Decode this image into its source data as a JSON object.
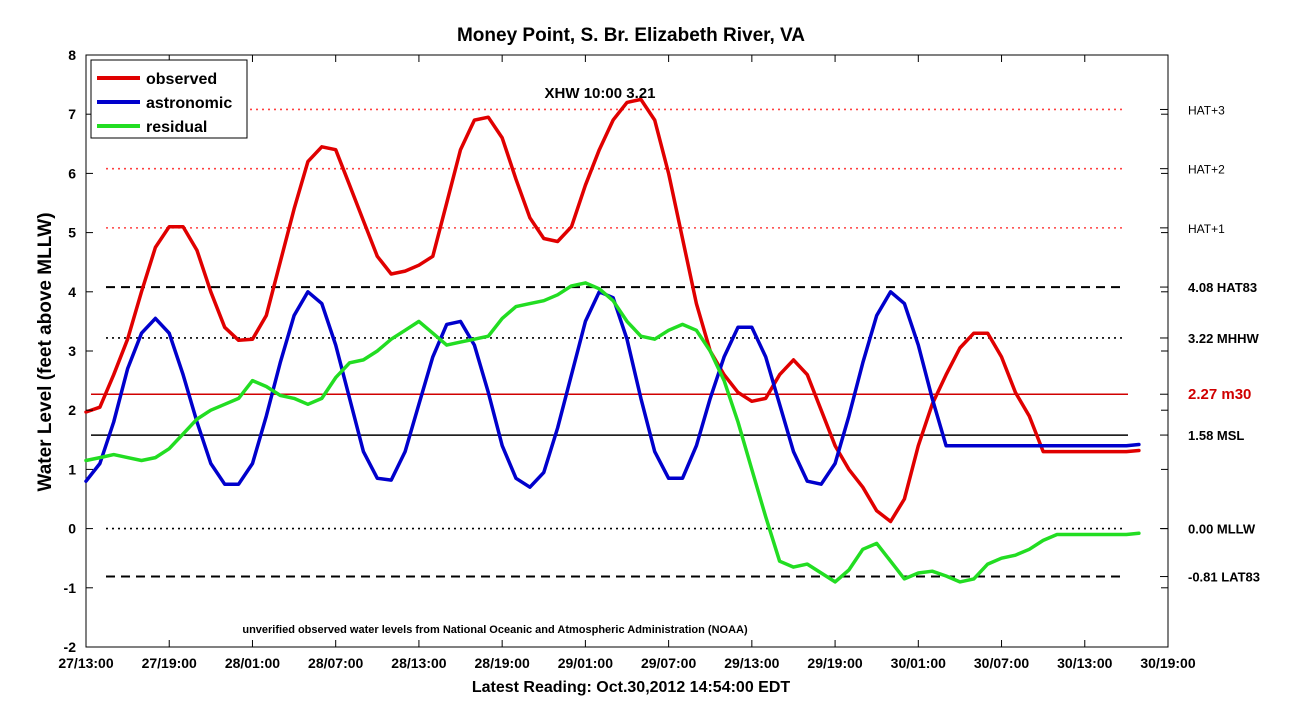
{
  "chart_data": {
    "type": "line",
    "title": "Money Point, S. Br. Elizabeth River, VA",
    "xlabel": "Latest Reading: Oct.30,2012 14:54:00 EDT",
    "ylabel": "Water Level (feet above MLLW)",
    "ylim": [
      -2,
      8
    ],
    "yticks": [
      "-2",
      "-1",
      "0",
      "1",
      "2",
      "3",
      "4",
      "5",
      "6",
      "7",
      "8"
    ],
    "xlim": [
      0,
      78
    ],
    "xticks": [
      {
        "x": 0,
        "label": "27/13:00"
      },
      {
        "x": 6,
        "label": "27/19:00"
      },
      {
        "x": 12,
        "label": "28/01:00"
      },
      {
        "x": 18,
        "label": "28/07:00"
      },
      {
        "x": 24,
        "label": "28/13:00"
      },
      {
        "x": 30,
        "label": "28/19:00"
      },
      {
        "x": 36,
        "label": "29/01:00"
      },
      {
        "x": 42,
        "label": "29/07:00"
      },
      {
        "x": 48,
        "label": "29/13:00"
      },
      {
        "x": 54,
        "label": "29/19:00"
      },
      {
        "x": 60,
        "label": "30/01:00"
      },
      {
        "x": 66,
        "label": "30/07:00"
      },
      {
        "x": 72,
        "label": "30/13:00"
      },
      {
        "x": 78,
        "label": "30/19:00"
      }
    ],
    "legend_position": "top-left",
    "annotation": "XHW 10:00 3.21",
    "footnote": "unverified observed water levels from National Oceanic and Atmospheric Administration (NOAA)",
    "reference_lines": [
      {
        "value": 7.08,
        "label": "HAT+3",
        "style": "dotted",
        "color": "#ff4040"
      },
      {
        "value": 6.08,
        "label": "HAT+2",
        "style": "dotted",
        "color": "#ff4040"
      },
      {
        "value": 5.08,
        "label": "HAT+1",
        "style": "dotted",
        "color": "#ff4040"
      },
      {
        "value": 4.08,
        "label": "4.08 HAT83",
        "style": "dashed",
        "color": "#000000"
      },
      {
        "value": 3.22,
        "label": "3.22 MHHW",
        "style": "dotted",
        "color": "#000000"
      },
      {
        "value": 2.27,
        "label": "2.27 m30",
        "style": "solid",
        "color": "#d00000"
      },
      {
        "value": 1.58,
        "label": "1.58 MSL",
        "style": "solid",
        "color": "#000000"
      },
      {
        "value": 0.0,
        "label": "0.00 MLLW",
        "style": "dotted",
        "color": "#000000"
      },
      {
        "value": -0.81,
        "label": "-0.81 LAT83",
        "style": "dashed",
        "color": "#000000"
      }
    ],
    "series": [
      {
        "name": "observed",
        "color": "#e00000",
        "x": [
          0,
          1,
          2,
          3,
          4,
          5,
          6,
          7,
          8,
          9,
          10,
          11,
          12,
          13,
          14,
          15,
          16,
          17,
          18,
          19,
          20,
          21,
          22,
          23,
          24,
          25,
          26,
          27,
          28,
          29,
          30,
          31,
          32,
          33,
          34,
          35,
          36,
          37,
          38,
          39,
          40,
          41,
          42,
          43,
          44,
          45,
          46,
          47,
          48,
          49,
          50,
          51,
          52,
          53,
          54,
          55,
          56,
          57,
          58,
          59,
          60,
          61,
          62,
          63,
          64,
          65,
          66,
          67,
          68,
          69,
          70,
          71,
          72,
          73,
          74,
          75,
          75.9
        ],
        "values": [
          1.97,
          2.05,
          2.6,
          3.2,
          4.0,
          4.75,
          5.1,
          5.1,
          4.7,
          4.0,
          3.4,
          3.18,
          3.2,
          3.6,
          4.5,
          5.4,
          6.2,
          6.45,
          6.4,
          5.8,
          5.2,
          4.6,
          4.3,
          4.35,
          4.45,
          4.6,
          5.5,
          6.4,
          6.9,
          6.95,
          6.6,
          5.9,
          5.25,
          4.9,
          4.85,
          5.1,
          5.8,
          6.4,
          6.9,
          7.2,
          7.25,
          6.9,
          6.0,
          4.9,
          3.8,
          3.0,
          2.6,
          2.3,
          2.15,
          2.2,
          2.6,
          2.85,
          2.6,
          2.0,
          1.4,
          1.0,
          0.7,
          0.3,
          0.12,
          0.5,
          1.4,
          2.1,
          2.6,
          3.05,
          3.3,
          3.3,
          2.9,
          2.3,
          1.9,
          1.3,
          1.3,
          1.3,
          1.3,
          1.3,
          1.3,
          1.3,
          1.32
        ]
      },
      {
        "name": "astronomic",
        "color": "#0000cc",
        "x": [
          0,
          1,
          2,
          3,
          4,
          5,
          6,
          7,
          8,
          9,
          10,
          11,
          12,
          13,
          14,
          15,
          16,
          17,
          18,
          19,
          20,
          21,
          22,
          23,
          24,
          25,
          26,
          27,
          28,
          29,
          30,
          31,
          32,
          33,
          34,
          35,
          36,
          37,
          38,
          39,
          40,
          41,
          42,
          43,
          44,
          45,
          46,
          47,
          48,
          49,
          50,
          51,
          52,
          53,
          54,
          55,
          56,
          57,
          58,
          59,
          60,
          61,
          62,
          63,
          64,
          65,
          66,
          67,
          68,
          69,
          70,
          71,
          72,
          73,
          74,
          75,
          75.9
        ],
        "values": [
          0.8,
          1.1,
          1.8,
          2.7,
          3.3,
          3.55,
          3.3,
          2.6,
          1.8,
          1.1,
          0.75,
          0.75,
          1.1,
          1.9,
          2.8,
          3.6,
          4.0,
          3.8,
          3.1,
          2.2,
          1.3,
          0.85,
          0.82,
          1.3,
          2.1,
          2.9,
          3.45,
          3.5,
          3.1,
          2.3,
          1.4,
          0.85,
          0.7,
          0.95,
          1.7,
          2.6,
          3.5,
          4.0,
          3.9,
          3.2,
          2.2,
          1.3,
          0.85,
          0.85,
          1.4,
          2.2,
          2.9,
          3.4,
          3.4,
          2.9,
          2.1,
          1.3,
          0.8,
          0.75,
          1.1,
          1.9,
          2.8,
          3.6,
          4.0,
          3.8,
          3.1,
          2.2,
          1.4,
          1.4,
          1.4,
          1.4,
          1.4,
          1.4,
          1.4,
          1.4,
          1.4,
          1.4,
          1.4,
          1.4,
          1.4,
          1.4,
          1.42
        ]
      },
      {
        "name": "residual",
        "color": "#22dd22",
        "x": [
          0,
          1,
          2,
          3,
          4,
          5,
          6,
          7,
          8,
          9,
          10,
          11,
          12,
          13,
          14,
          15,
          16,
          17,
          18,
          19,
          20,
          21,
          22,
          23,
          24,
          25,
          26,
          27,
          28,
          29,
          30,
          31,
          32,
          33,
          34,
          35,
          36,
          37,
          38,
          39,
          40,
          41,
          42,
          43,
          44,
          45,
          46,
          47,
          48,
          49,
          50,
          51,
          52,
          53,
          54,
          55,
          56,
          57,
          58,
          59,
          60,
          61,
          62,
          63,
          64,
          65,
          66,
          67,
          68,
          69,
          70,
          71,
          72,
          73,
          74,
          75,
          75.9
        ],
        "values": [
          1.15,
          1.2,
          1.25,
          1.2,
          1.15,
          1.2,
          1.35,
          1.6,
          1.85,
          2.0,
          2.1,
          2.2,
          2.5,
          2.4,
          2.25,
          2.2,
          2.1,
          2.2,
          2.55,
          2.8,
          2.85,
          3.0,
          3.2,
          3.35,
          3.5,
          3.3,
          3.1,
          3.15,
          3.2,
          3.25,
          3.55,
          3.75,
          3.8,
          3.85,
          3.95,
          4.1,
          4.15,
          4.05,
          3.85,
          3.5,
          3.25,
          3.2,
          3.35,
          3.45,
          3.35,
          3.0,
          2.5,
          1.8,
          1.0,
          0.2,
          -0.55,
          -0.65,
          -0.6,
          -0.75,
          -0.9,
          -0.7,
          -0.35,
          -0.25,
          -0.55,
          -0.85,
          -0.75,
          -0.72,
          -0.8,
          -0.9,
          -0.85,
          -0.6,
          -0.5,
          -0.45,
          -0.35,
          -0.2,
          -0.1,
          -0.1,
          -0.1,
          -0.1,
          -0.1,
          -0.1,
          -0.08
        ]
      }
    ]
  }
}
